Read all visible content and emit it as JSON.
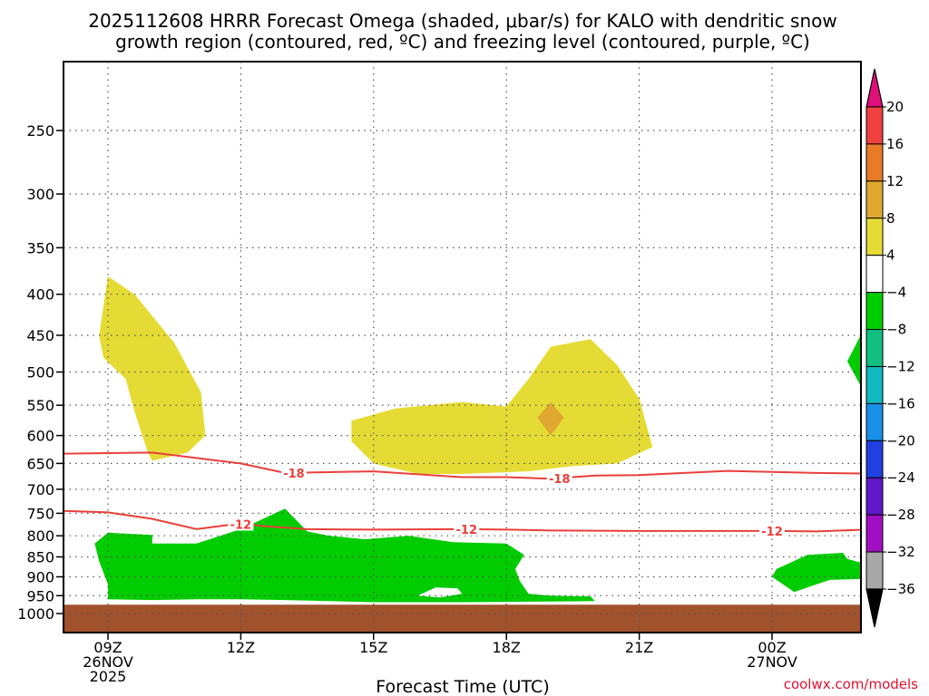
{
  "title_line1": "2025112608 HRRR Forecast Omega (shaded, μbar/s) for KALO with dendritic snow",
  "title_line2": "growth region (contoured, red, ºC) and freezing level (contoured, purple, ºC)",
  "credit": "coolwx.com/models",
  "colors": {
    "dgz_contour": "#e8403a",
    "ground": "#a0522d",
    "grid": "#555555"
  },
  "chart_data": {
    "type": "heatmap",
    "title": "2025112608 HRRR Forecast Omega (shaded, μbar/s) for KALO with dendritic snow growth region (contoured, red, ºC) and freezing level (contoured, purple, ºC)",
    "xlabel": "Forecast Time (UTC)",
    "ylabel": "",
    "xlim": [
      "2025-11-26T08:00Z",
      "2025-11-27T02:00Z"
    ],
    "ylim_hPa": [
      1010,
      200
    ],
    "x_ticks": [
      {
        "time": "2025-11-26T09:00Z",
        "label": "09Z",
        "sub1": "26NOV",
        "sub2": "2025"
      },
      {
        "time": "2025-11-26T12:00Z",
        "label": "12Z",
        "sub1": "",
        "sub2": ""
      },
      {
        "time": "2025-11-26T15:00Z",
        "label": "15Z",
        "sub1": "",
        "sub2": ""
      },
      {
        "time": "2025-11-26T18:00Z",
        "label": "18Z",
        "sub1": "",
        "sub2": ""
      },
      {
        "time": "2025-11-26T21:00Z",
        "label": "21Z",
        "sub1": "",
        "sub2": ""
      },
      {
        "time": "2025-11-27T00:00Z",
        "label": "00Z",
        "sub1": "27NOV",
        "sub2": ""
      }
    ],
    "y_ticks": [
      250,
      300,
      350,
      400,
      450,
      500,
      550,
      600,
      650,
      700,
      750,
      800,
      850,
      900,
      950,
      1000
    ],
    "colorbar": {
      "ticks": [
        20,
        16,
        12,
        8,
        4,
        -4,
        -8,
        -12,
        -16,
        -20,
        -24,
        -28,
        -32,
        -36
      ],
      "segments": [
        {
          "range": "above 20",
          "color": "#e0107a"
        },
        {
          "range": "16 to 20",
          "color": "#f04040"
        },
        {
          "range": "12 to 16",
          "color": "#e87a28"
        },
        {
          "range": "8 to 12",
          "color": "#e0a830"
        },
        {
          "range": "4 to 8",
          "color": "#e5db35"
        },
        {
          "range": "-4 to 4",
          "color": "#ffffff"
        },
        {
          "range": "-8 to -4",
          "color": "#00cc00"
        },
        {
          "range": "-12 to -8",
          "color": "#10c080"
        },
        {
          "range": "-16 to -12",
          "color": "#10b8c0"
        },
        {
          "range": "-20 to -16",
          "color": "#1890e8"
        },
        {
          "range": "-24 to -20",
          "color": "#2040e0"
        },
        {
          "range": "-28 to -24",
          "color": "#6018c8"
        },
        {
          "range": "-32 to -28",
          "color": "#a010c0"
        },
        {
          "range": "-36 to -32",
          "color": "#a8a8a8"
        },
        {
          "range": "below -36",
          "color": "#000000"
        }
      ]
    },
    "omega_regions": [
      {
        "color": "#e5db35",
        "range": "4 to 8",
        "pts": [
          [
            9.0,
            380
          ],
          [
            9.6,
            400
          ],
          [
            10.5,
            460
          ],
          [
            11.1,
            530
          ],
          [
            11.2,
            600
          ],
          [
            10.8,
            630
          ],
          [
            10.0,
            645
          ],
          [
            9.9,
            630
          ],
          [
            9.6,
            560
          ],
          [
            9.4,
            510
          ],
          [
            8.9,
            480
          ],
          [
            8.8,
            450
          ]
        ]
      },
      {
        "color": "#e5db35",
        "range": "4 to 8",
        "pts": [
          [
            14.5,
            575
          ],
          [
            15.5,
            555
          ],
          [
            17.0,
            545
          ],
          [
            18.0,
            552
          ],
          [
            18.5,
            510
          ],
          [
            19.0,
            465
          ],
          [
            19.9,
            455
          ],
          [
            20.5,
            490
          ],
          [
            21.0,
            540
          ],
          [
            21.3,
            620
          ],
          [
            20.5,
            650
          ],
          [
            19.5,
            655
          ],
          [
            18.5,
            665
          ],
          [
            17.0,
            670
          ],
          [
            16.0,
            670
          ],
          [
            15.0,
            650
          ],
          [
            14.5,
            610
          ]
        ]
      },
      {
        "color": "#e0a830",
        "range": "8 to 12",
        "pts": [
          [
            19.0,
            545
          ],
          [
            19.3,
            570
          ],
          [
            19.0,
            600
          ],
          [
            18.7,
            570
          ]
        ]
      },
      {
        "color": "#00cc00",
        "range": "-8 to -4",
        "pts": [
          [
            8.7,
            818
          ],
          [
            9.0,
            793
          ],
          [
            10.0,
            798
          ],
          [
            10.0,
            818
          ],
          [
            11.0,
            818
          ],
          [
            12.0,
            785
          ],
          [
            13.0,
            740
          ],
          [
            13.5,
            790
          ],
          [
            14.0,
            800
          ],
          [
            14.8,
            808
          ],
          [
            15.8,
            800
          ],
          [
            16.8,
            815
          ],
          [
            18.0,
            818
          ],
          [
            18.4,
            845
          ],
          [
            18.2,
            880
          ],
          [
            18.3,
            910
          ],
          [
            18.5,
            945
          ],
          [
            19.0,
            950
          ],
          [
            19.9,
            952
          ],
          [
            20.0,
            965
          ],
          [
            18.0,
            967
          ],
          [
            17.0,
            968
          ],
          [
            16.0,
            968
          ],
          [
            15.0,
            968
          ],
          [
            14.0,
            965
          ],
          [
            13.0,
            962
          ],
          [
            12.0,
            960
          ],
          [
            11.0,
            960
          ],
          [
            10.0,
            962
          ],
          [
            9.0,
            960
          ],
          [
            9.0,
            920
          ],
          [
            8.8,
            860
          ]
        ]
      },
      {
        "color": "#ffffff",
        "range": "-4 to 4",
        "pts": [
          [
            16.4,
            928
          ],
          [
            16.9,
            930
          ],
          [
            17.0,
            945
          ],
          [
            16.5,
            955
          ],
          [
            16.0,
            950
          ]
        ]
      },
      {
        "color": "#00cc00",
        "range": "-8 to -4",
        "pts": [
          [
            24.1,
            880
          ],
          [
            24.8,
            845
          ],
          [
            25.6,
            840
          ],
          [
            25.7,
            855
          ],
          [
            26.2,
            870
          ],
          [
            26.6,
            880
          ],
          [
            27.0,
            880
          ],
          [
            27.0,
            965
          ],
          [
            26.5,
            950
          ],
          [
            26.2,
            905
          ],
          [
            25.3,
            908
          ],
          [
            24.5,
            940
          ],
          [
            24.0,
            900
          ]
        ]
      },
      {
        "color": "#00cc00",
        "range": "-8 to -4",
        "pts": [
          [
            26.0,
            450
          ],
          [
            26.4,
            485
          ],
          [
            26.0,
            520
          ],
          [
            25.7,
            485
          ]
        ]
      }
    ],
    "contours": [
      {
        "value": -18,
        "label": "-18",
        "color": "#e8403a",
        "pts": [
          [
            8.0,
            632
          ],
          [
            10.0,
            630
          ],
          [
            12.0,
            650
          ],
          [
            13.0,
            668
          ],
          [
            15.0,
            665
          ],
          [
            17.0,
            676
          ],
          [
            18.0,
            676
          ],
          [
            19.0,
            679
          ],
          [
            20.0,
            673
          ],
          [
            21.0,
            672
          ],
          [
            22.0,
            668
          ],
          [
            23.0,
            664
          ],
          [
            24.0,
            666
          ],
          [
            25.0,
            668
          ],
          [
            27.0,
            670
          ]
        ],
        "label_at": [
          [
            13.2,
            668
          ],
          [
            19.2,
            679
          ]
        ]
      },
      {
        "value": -12,
        "label": "-12",
        "color": "#e8403a",
        "pts": [
          [
            8.0,
            745
          ],
          [
            9.0,
            748
          ],
          [
            10.0,
            762
          ],
          [
            11.0,
            785
          ],
          [
            12.0,
            772
          ],
          [
            12.5,
            778
          ],
          [
            13.5,
            785
          ],
          [
            15.0,
            786
          ],
          [
            17.0,
            785
          ],
          [
            18.0,
            786
          ],
          [
            19.0,
            788
          ],
          [
            21.0,
            789
          ],
          [
            23.0,
            789
          ],
          [
            24.0,
            789
          ],
          [
            25.0,
            790
          ],
          [
            27.0,
            783
          ]
        ],
        "label_at": [
          [
            12.0,
            774
          ],
          [
            17.1,
            785
          ],
          [
            24.0,
            789
          ]
        ]
      }
    ],
    "ground_top_hPa": 975
  }
}
